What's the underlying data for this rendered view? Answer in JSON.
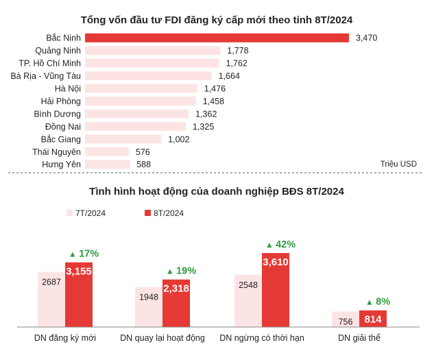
{
  "colors": {
    "accent": "#e53935",
    "light": "#fde4e4",
    "green": "#2e9c3e",
    "text": "#222222",
    "divider": "#555555"
  },
  "chart_data": [
    {
      "type": "bar",
      "orientation": "horizontal",
      "title": "Tổng vốn đầu tư FDI đăng ký cấp mới theo tỉnh 8T/2024",
      "unit": "Triệu USD",
      "categories": [
        "Bắc Ninh",
        "Quảng Ninh",
        "TP. Hồ Chí Minh",
        "Bà Rịa - Vũng Tàu",
        "Hà Nội",
        "Hải Phòng",
        "Bình Dương",
        "Đồng Nai",
        "Bắc Giang",
        "Thái Nguyên",
        "Hưng Yên"
      ],
      "values": [
        3470,
        1778,
        1762,
        1664,
        1476,
        1458,
        1362,
        1325,
        1002,
        576,
        588
      ],
      "value_labels": [
        "3,470",
        "1,778",
        "1,762",
        "1,664",
        "1,476",
        "1,458",
        "1,362",
        "1,325",
        "1,002",
        "576",
        "588"
      ],
      "highlight_index": 0,
      "xlim": [
        0,
        3470
      ]
    },
    {
      "type": "bar",
      "orientation": "vertical",
      "title": "Tình hình hoạt động của doanh nghiệp BĐS 8T/2024",
      "categories": [
        "DN đăng ký mới",
        "DN quay lại hoạt động",
        "DN ngừng có thời hạn",
        "DN giải thể"
      ],
      "series": [
        {
          "name": "7T/2024",
          "values": [
            2687,
            1948,
            2548,
            756
          ],
          "labels": [
            "2687",
            "1948",
            "2548",
            "756"
          ]
        },
        {
          "name": "8T/2024",
          "values": [
            3155,
            2318,
            3610,
            814
          ],
          "labels": [
            "3,155",
            "2,318",
            "3,610",
            "814"
          ]
        }
      ],
      "changes": [
        "17%",
        "19%",
        "42%",
        "8%"
      ],
      "change_arrow": "▲",
      "ylim": [
        0,
        3610
      ],
      "legend": "top-left"
    }
  ]
}
